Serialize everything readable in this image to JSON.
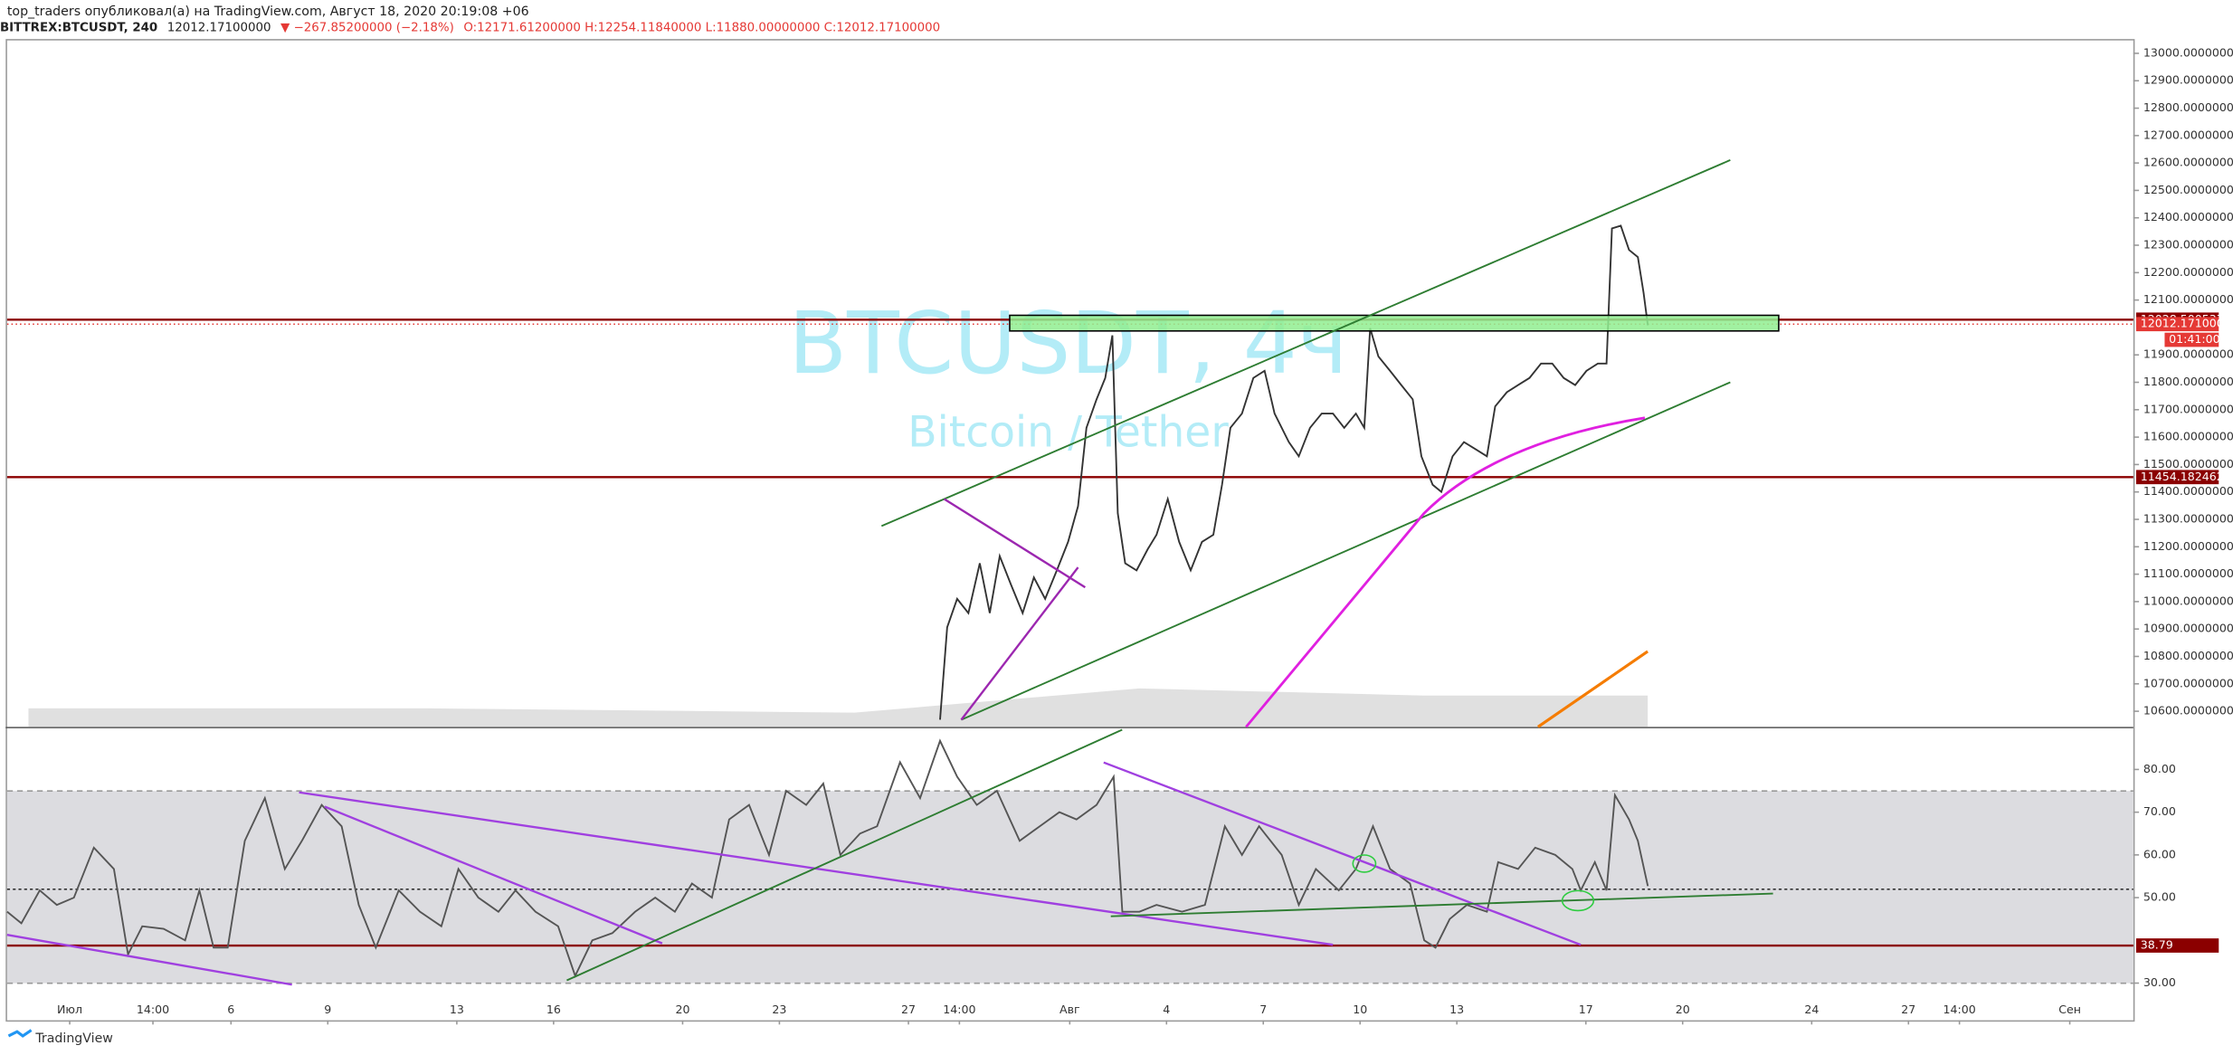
{
  "header": {
    "line1": "top_traders опубликовал(а) на TradingView.com, Август 18, 2020 20:19:08 +06",
    "symbol": "BITTREX:BTCUSDT, 240",
    "last": "12012.17100000",
    "change": "▼ −267.85200000 (−2.18%)",
    "ohlc": "O:12171.61200000 H:12254.11840000 L:11880.00000000 C:12012.17100000"
  },
  "watermark": {
    "symbol": "BTCUSDT, 4ч",
    "name": "Bitcoin / Tether"
  },
  "footer": "TradingView",
  "chart_data": [
    {
      "type": "line",
      "color": "#333333",
      "xlim": [
        -0.94,
        64.97
      ],
      "ylim": [
        10543,
        13047
      ],
      "x": [
        27.98,
        28.2,
        28.51,
        28.86,
        29.21,
        29.52,
        29.83,
        30.18,
        30.54,
        30.89,
        31.24,
        31.6,
        31.95,
        32.26,
        32.52,
        32.83,
        33.1,
        33.32,
        33.49,
        33.72,
        34.07,
        34.42,
        34.69,
        35.04,
        35.39,
        35.75,
        36.1,
        36.45,
        36.72,
        36.98,
        37.34,
        37.69,
        38.04,
        38.35,
        38.79,
        39.1,
        39.45,
        39.81,
        40.16,
        40.51,
        40.87,
        41.13,
        41.31,
        41.57,
        41.93,
        42.28,
        42.63,
        42.9,
        43.25,
        43.52,
        43.87,
        44.22,
        44.58,
        44.93,
        45.19,
        45.55,
        45.9,
        46.25,
        46.61,
        46.96,
        47.31,
        47.67,
        48.02,
        48.37,
        48.64,
        48.81,
        49.08,
        49.34,
        49.61,
        49.79,
        49.92
      ],
      "values": [
        10569,
        10906,
        11010,
        10958,
        11140,
        10958,
        11166,
        11062,
        10958,
        11088,
        11010,
        11114,
        11218,
        11348,
        11634,
        11738,
        11816,
        11971,
        11322,
        11140,
        11114,
        11192,
        11244,
        11374,
        11218,
        11114,
        11218,
        11244,
        11426,
        11634,
        11686,
        11816,
        11842,
        11686,
        11582,
        11530,
        11634,
        11686,
        11686,
        11634,
        11686,
        11634,
        11997,
        11894,
        11842,
        11790,
        11738,
        11530,
        11426,
        11400,
        11530,
        11582,
        11556,
        11530,
        11712,
        11764,
        11790,
        11816,
        11868,
        11868,
        11816,
        11790,
        11842,
        11868,
        11868,
        12361,
        12371,
        12283,
        12257,
        12127,
        12008
      ],
      "yticks": [
        {
          "value": 13000,
          "label": "13000.00000000"
        },
        {
          "value": 12900,
          "label": "12900.00000000"
        },
        {
          "value": 12800,
          "label": "12800.00000000"
        },
        {
          "value": 12700,
          "label": "12700.00000000"
        },
        {
          "value": 12600,
          "label": "12600.00000000"
        },
        {
          "value": 12500,
          "label": "12500.00000000"
        },
        {
          "value": 12400,
          "label": "12400.00000000"
        },
        {
          "value": 12300,
          "label": "12300.00000000"
        },
        {
          "value": 12200,
          "label": "12200.00000000"
        },
        {
          "value": 12100,
          "label": "12100.00000000"
        },
        {
          "value": 11900,
          "label": "11900.00000000"
        },
        {
          "value": 11800,
          "label": "11800.00000000"
        },
        {
          "value": 11700,
          "label": "11700.00000000"
        },
        {
          "value": 11600,
          "label": "11600.00000000"
        },
        {
          "value": 11500,
          "label": "11500.00000000"
        },
        {
          "value": 11400,
          "label": "11400.00000000"
        },
        {
          "value": 11300,
          "label": "11300.00000000"
        },
        {
          "value": 11200,
          "label": "11200.00000000"
        },
        {
          "value": 11100,
          "label": "11100.00000000"
        },
        {
          "value": 11000,
          "label": "11000.00000000"
        },
        {
          "value": 10900,
          "label": "10900.00000000"
        },
        {
          "value": 10800,
          "label": "10800.00000000"
        },
        {
          "value": 10700,
          "label": "10700.00000000"
        },
        {
          "value": 10600,
          "label": "10600.00000000"
        }
      ],
      "levels": [
        12028.50053799,
        11454.18246295
      ],
      "level_color": "#8b0000",
      "last": {
        "value": 12012.171,
        "label": "12012.17100000"
      },
      "last_color": "#e53935",
      "countdown": "01:41:00"
    },
    {
      "type": "line",
      "color": "#555555",
      "xlim": [
        -0.94,
        64.97
      ],
      "ylim": [
        21.3,
        89.3
      ],
      "x": [
        -0.94,
        -0.5,
        0.07,
        0.6,
        1.13,
        1.75,
        2.37,
        2.81,
        3.25,
        3.91,
        4.58,
        5.02,
        5.46,
        5.9,
        6.43,
        7.05,
        7.67,
        8.2,
        8.81,
        9.43,
        9.96,
        10.49,
        11.2,
        11.86,
        12.52,
        13.05,
        13.67,
        14.29,
        14.82,
        15.44,
        16.14,
        16.67,
        17.2,
        17.82,
        18.53,
        19.15,
        19.76,
        20.29,
        20.91,
        21.44,
        22.06,
        22.68,
        23.21,
        23.83,
        24.36,
        24.89,
        25.5,
        26.03,
        26.74,
        27.36,
        27.98,
        28.51,
        29.12,
        29.74,
        30.45,
        31.07,
        31.68,
        32.21,
        32.83,
        33.36,
        33.63,
        34.16,
        34.69,
        35.48,
        36.19,
        36.81,
        37.34,
        37.87,
        38.57,
        39.1,
        39.63,
        40.34,
        40.87,
        41.4,
        41.93,
        42.55,
        42.99,
        43.34,
        43.78,
        44.31,
        44.93,
        45.28,
        45.9,
        46.43,
        47.05,
        47.58,
        47.84,
        48.28,
        48.64,
        48.9,
        49.34,
        49.61,
        49.92
      ],
      "values": [
        46.7,
        44,
        51.7,
        48.3,
        50,
        61.7,
        56.7,
        36.7,
        43.3,
        42.7,
        40,
        51.7,
        38.3,
        38.3,
        63.3,
        73.3,
        56.7,
        63.3,
        71.7,
        66.7,
        48.3,
        38.3,
        51.7,
        46.7,
        43.3,
        56.7,
        50,
        46.7,
        51.7,
        46.7,
        43.3,
        31.7,
        40,
        41.7,
        46.7,
        50,
        46.7,
        53.3,
        50,
        68.3,
        71.7,
        60,
        75,
        71.7,
        76.7,
        60,
        65,
        66.7,
        81.7,
        73.3,
        86.7,
        78.3,
        71.7,
        75,
        63.3,
        66.7,
        70,
        68.3,
        71.7,
        78.3,
        46.7,
        46.7,
        48.3,
        46.7,
        48.3,
        66.7,
        60,
        66.7,
        60,
        48.3,
        56.7,
        51.7,
        56.7,
        66.7,
        56.7,
        53.3,
        40,
        38.3,
        45,
        48.3,
        46.7,
        58.3,
        56.7,
        61.7,
        60,
        56.7,
        51.7,
        58.3,
        51.7,
        74,
        68.3,
        63.3,
        52.7
      ],
      "yticks": [
        {
          "value": 80,
          "label": "80.00"
        },
        {
          "value": 70,
          "label": "70.00"
        },
        {
          "value": 60,
          "label": "60.00"
        },
        {
          "value": 50,
          "label": "50.00"
        },
        {
          "value": 30,
          "label": "30.00"
        }
      ],
      "levels": [
        38.79
      ],
      "level_color": "#8b0000",
      "xticks": [
        {
          "value": 1,
          "label": "Июл"
        },
        {
          "value": 3.58,
          "label": "14:00"
        },
        {
          "value": 6,
          "label": "6"
        },
        {
          "value": 9,
          "label": "9"
        },
        {
          "value": 13,
          "label": "13"
        },
        {
          "value": 16,
          "label": "16"
        },
        {
          "value": 20,
          "label": "20"
        },
        {
          "value": 23,
          "label": "23"
        },
        {
          "value": 27,
          "label": "27"
        },
        {
          "value": 28.58,
          "label": "14:00"
        },
        {
          "value": 32,
          "label": "Авг"
        },
        {
          "value": 35,
          "label": "4"
        },
        {
          "value": 38,
          "label": "7"
        },
        {
          "value": 41,
          "label": "10"
        },
        {
          "value": 44,
          "label": "13"
        },
        {
          "value": 48,
          "label": "17"
        },
        {
          "value": 51,
          "label": "20"
        },
        {
          "value": 55,
          "label": "24"
        },
        {
          "value": 58,
          "label": "27"
        },
        {
          "value": 59.58,
          "label": "14:00"
        },
        {
          "value": 63,
          "label": "Сен"
        }
      ]
    }
  ]
}
